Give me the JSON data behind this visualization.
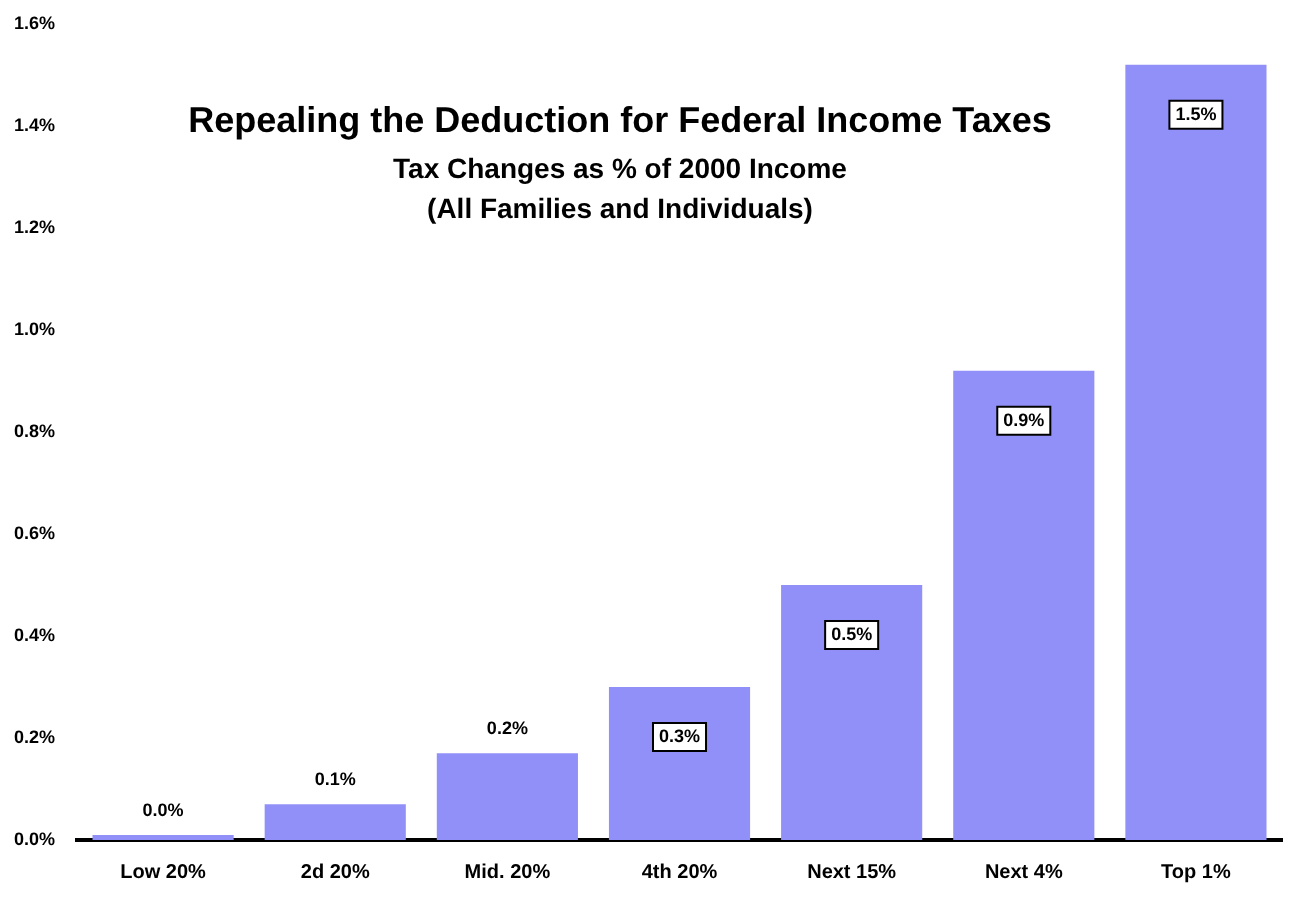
{
  "chart_data": {
    "type": "bar",
    "title": "Repealing the Deduction for Federal Income Taxes",
    "subtitle": "Tax Changes as % of 2000 Income\n(All Families and Individuals)",
    "categories": [
      "Low 20%",
      "2d 20%",
      "Mid. 20%",
      "4th 20%",
      "Next 15%",
      "Next 4%",
      "Top 1%"
    ],
    "values": [
      0.01,
      0.07,
      0.17,
      0.3,
      0.5,
      0.92,
      1.52
    ],
    "value_labels": [
      "0.0%",
      "0.1%",
      "0.2%",
      "0.3%",
      "0.5%",
      "0.9%",
      "1.5%"
    ],
    "color": "#9090f8",
    "ylim": [
      0,
      1.6
    ],
    "yticks": [
      {
        "value": 0,
        "label": "0.0%"
      },
      {
        "value": 0.2,
        "label": "0.2%"
      },
      {
        "value": 0.4,
        "label": "0.4%"
      },
      {
        "value": 0.6,
        "label": "0.6%"
      },
      {
        "value": 0.8,
        "label": "0.8%"
      },
      {
        "value": 1.0,
        "label": "1.0%"
      },
      {
        "value": 1.2,
        "label": "1.2%"
      },
      {
        "value": 1.4,
        "label": "1.4%"
      },
      {
        "value": 1.6,
        "label": "1.6%"
      }
    ],
    "grid": false,
    "legend": false
  }
}
